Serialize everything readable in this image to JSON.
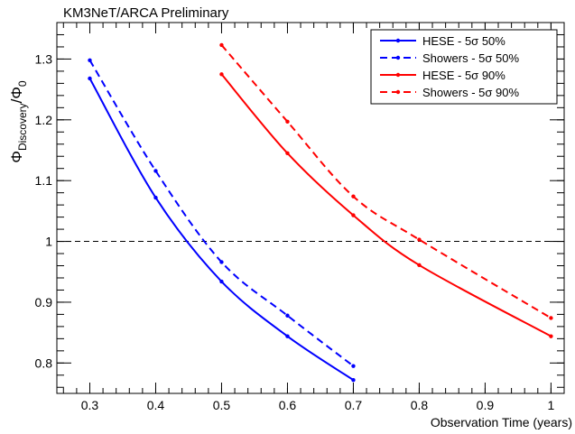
{
  "chart_data": {
    "type": "line",
    "title": "KM3NeT/ARCA Preliminary",
    "xlabel": "Observation Time (years)",
    "ylabel_main": "Φ",
    "ylabel_sub": "Discovery",
    "ylabel_slash": "/Φ",
    "ylabel_sub2": "0",
    "xlim": [
      0.25,
      1.02
    ],
    "ylim": [
      0.75,
      1.36
    ],
    "x_ticks": [
      0.3,
      0.4,
      0.5,
      0.6,
      0.7,
      0.8,
      0.9,
      1.0
    ],
    "x_tick_labels": [
      "0.3",
      "0.4",
      "0.5",
      "0.6",
      "0.7",
      "0.8",
      "0.9",
      "1"
    ],
    "y_ticks": [
      0.8,
      0.9,
      1.0,
      1.1,
      1.2,
      1.3
    ],
    "y_tick_labels": [
      "0.8",
      "0.9",
      "1",
      "1.1",
      "1.2",
      "1.3"
    ],
    "reference_line": 1.0,
    "legend_position": "top-right",
    "grid": false,
    "series": [
      {
        "name": "HESE - 5σ 50%",
        "color": "#0000ff",
        "dashed": false,
        "x": [
          0.3,
          0.4,
          0.5,
          0.6,
          0.7
        ],
        "y": [
          1.268,
          1.072,
          0.934,
          0.844,
          0.772
        ]
      },
      {
        "name": "Showers - 5σ 50%",
        "color": "#0000ff",
        "dashed": true,
        "x": [
          0.3,
          0.4,
          0.5,
          0.6,
          0.7
        ],
        "y": [
          1.298,
          1.116,
          0.966,
          0.878,
          0.795
        ]
      },
      {
        "name": "HESE - 5σ 90%",
        "color": "#ff0000",
        "dashed": false,
        "x": [
          0.5,
          0.6,
          0.7,
          0.8,
          1.0
        ],
        "y": [
          1.275,
          1.145,
          1.043,
          0.961,
          0.844
        ]
      },
      {
        "name": "Showers - 5σ 90%",
        "color": "#ff0000",
        "dashed": true,
        "x": [
          0.5,
          0.6,
          0.7,
          0.8,
          1.0
        ],
        "y": [
          1.323,
          1.197,
          1.074,
          1.003,
          0.874
        ]
      }
    ]
  }
}
